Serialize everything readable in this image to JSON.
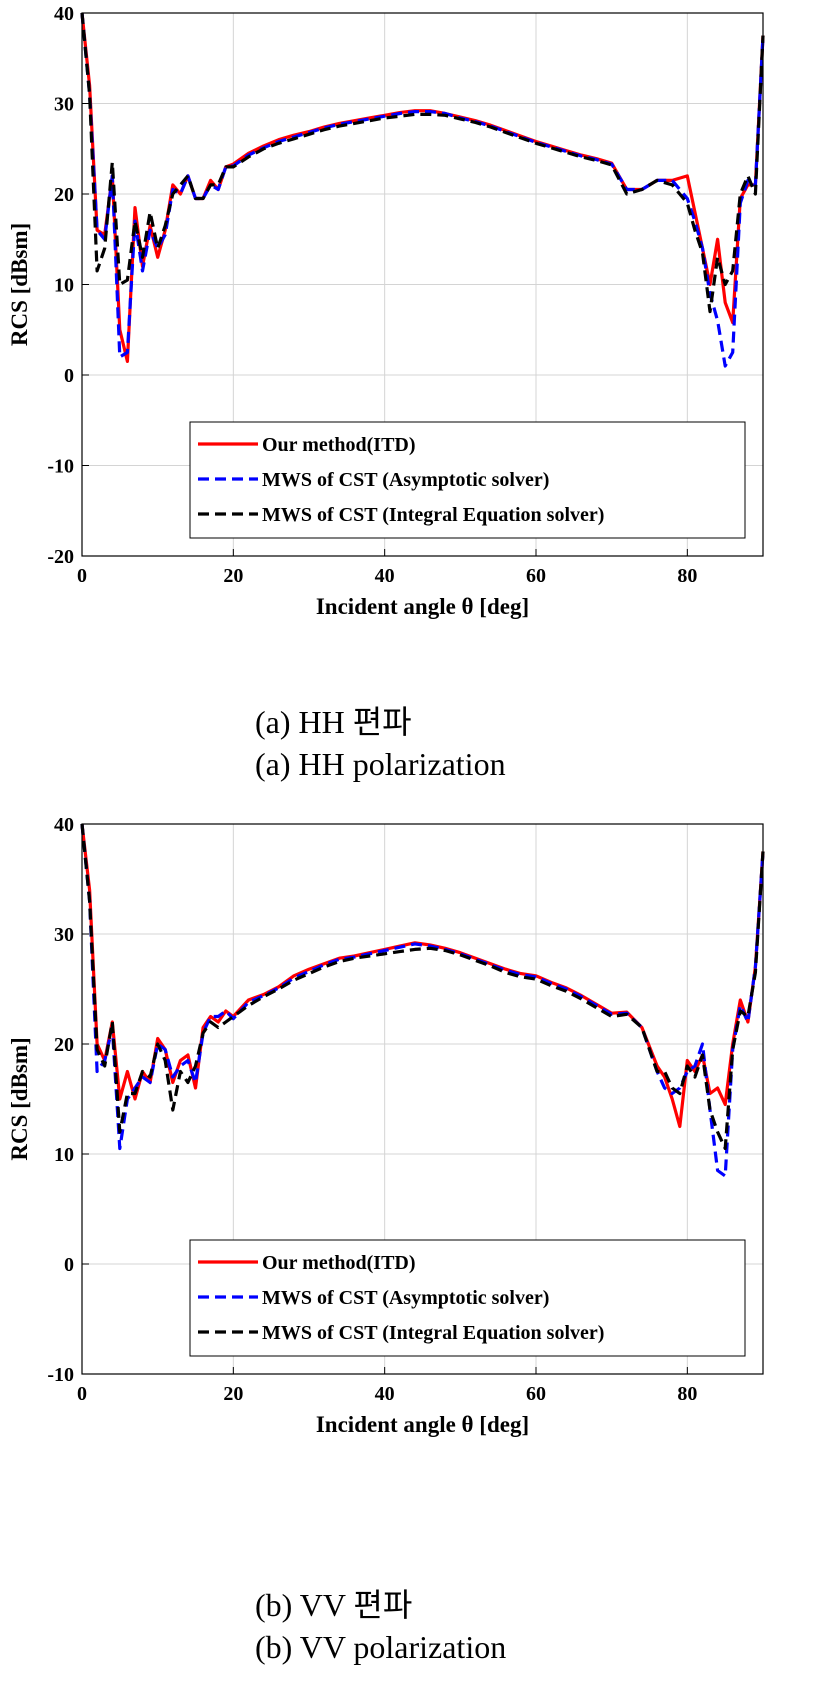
{
  "chart_data": [
    {
      "type": "line",
      "caption_kr": "(a) HH 편파",
      "caption_en": "(a) HH polarization",
      "xlabel": "Incident angle θ [deg]",
      "ylabel": "RCS [dBsm]",
      "xlim": [
        0,
        90
      ],
      "ylim": [
        -20,
        40
      ],
      "xticks": [
        0,
        20,
        40,
        60,
        80
      ],
      "yticks": [
        -20,
        -10,
        0,
        10,
        20,
        30,
        40
      ],
      "grid": true,
      "legend_position": "bottom-right",
      "series": [
        {
          "name": "Our method(ITD)",
          "color": "#ff0000",
          "dash": "solid",
          "x": [
            0,
            1,
            2,
            3,
            4,
            5,
            6,
            7,
            8,
            9,
            10,
            11,
            12,
            13,
            14,
            15,
            16,
            17,
            18,
            19,
            20,
            22,
            24,
            26,
            28,
            30,
            32,
            34,
            36,
            38,
            40,
            42,
            44,
            46,
            48,
            50,
            52,
            54,
            56,
            58,
            60,
            62,
            64,
            66,
            68,
            70,
            72,
            74,
            76,
            78,
            80,
            81,
            82,
            83,
            84,
            85,
            86,
            87,
            88,
            89,
            90
          ],
          "y": [
            40,
            32,
            16,
            15.5,
            22,
            5,
            1.5,
            18.5,
            12,
            16.5,
            13,
            16,
            21,
            20,
            22,
            19.5,
            19.5,
            21.5,
            20.5,
            23,
            23.3,
            24.5,
            25.3,
            26,
            26.5,
            26.9,
            27.4,
            27.8,
            28.1,
            28.4,
            28.7,
            29,
            29.2,
            29.2,
            28.9,
            28.5,
            28.1,
            27.6,
            27,
            26.4,
            25.8,
            25.3,
            24.8,
            24.3,
            23.9,
            23.4,
            20.5,
            20.5,
            21.5,
            21.5,
            22,
            18,
            14,
            10,
            15,
            8,
            5.8,
            19.5,
            21,
            21,
            37.5
          ]
        },
        {
          "name": "MWS of CST (Asymptotic solver)",
          "color": "#0000ff",
          "dash": "dashed",
          "x": [
            0,
            1,
            2,
            3,
            4,
            5,
            6,
            7,
            8,
            9,
            10,
            11,
            12,
            13,
            14,
            15,
            16,
            17,
            18,
            19,
            20,
            22,
            24,
            26,
            28,
            30,
            32,
            34,
            36,
            38,
            40,
            42,
            44,
            46,
            48,
            50,
            52,
            54,
            56,
            58,
            60,
            62,
            64,
            66,
            68,
            70,
            72,
            74,
            76,
            78,
            80,
            81,
            82,
            83,
            84,
            85,
            86,
            87,
            88,
            89,
            90
          ],
          "y": [
            40,
            31,
            16,
            15,
            22,
            2,
            2.5,
            17,
            11.5,
            16,
            14,
            15.5,
            20.5,
            20,
            22,
            19.5,
            19.5,
            21,
            20.5,
            23,
            23.1,
            24.3,
            25.1,
            25.8,
            26.3,
            26.8,
            27.3,
            27.7,
            28,
            28.3,
            28.6,
            28.9,
            29.1,
            29.1,
            28.9,
            28.4,
            28,
            27.5,
            26.9,
            26.3,
            25.7,
            25.2,
            24.7,
            24.2,
            23.8,
            23.3,
            20.5,
            20.5,
            21.5,
            21.5,
            19.5,
            17,
            14,
            9,
            6,
            1,
            2.5,
            19,
            21.5,
            21,
            37.5
          ]
        },
        {
          "name": "MWS of CST (Integral Equation solver)",
          "color": "#000000",
          "dash": "dashed",
          "x": [
            0,
            1,
            2,
            3,
            4,
            5,
            6,
            7,
            8,
            9,
            10,
            11,
            12,
            13,
            14,
            15,
            16,
            17,
            18,
            19,
            20,
            22,
            24,
            26,
            28,
            30,
            32,
            34,
            36,
            38,
            40,
            42,
            44,
            46,
            48,
            50,
            52,
            54,
            56,
            58,
            60,
            62,
            64,
            66,
            68,
            70,
            72,
            74,
            76,
            78,
            80,
            81,
            82,
            83,
            84,
            85,
            86,
            87,
            88,
            89,
            90
          ],
          "y": [
            40,
            31,
            11.5,
            14,
            23.5,
            10,
            10.5,
            17,
            13,
            18,
            14,
            16.5,
            20,
            21,
            22,
            19.5,
            19.5,
            21,
            21,
            23,
            23,
            24.1,
            25,
            25.6,
            26.1,
            26.6,
            27.1,
            27.5,
            27.8,
            28.1,
            28.4,
            28.6,
            28.8,
            28.8,
            28.7,
            28.3,
            27.9,
            27.4,
            26.8,
            26.2,
            25.6,
            25.1,
            24.6,
            24.1,
            23.7,
            23.2,
            20,
            20.5,
            21.5,
            21,
            19,
            16,
            13.5,
            7,
            13,
            10,
            11.5,
            20,
            22,
            20,
            37.5
          ]
        }
      ]
    },
    {
      "type": "line",
      "caption_kr": "(b) VV 편파",
      "caption_en": "(b) VV polarization",
      "xlabel": "Incident angle θ [deg]",
      "ylabel": "RCS [dBsm]",
      "xlim": [
        0,
        90
      ],
      "ylim": [
        -10,
        40
      ],
      "xticks": [
        0,
        20,
        40,
        60,
        80
      ],
      "yticks": [
        -10,
        0,
        10,
        20,
        30,
        40
      ],
      "grid": true,
      "legend_position": "bottom-right",
      "series": [
        {
          "name": "Our method(ITD)",
          "color": "#ff0000",
          "dash": "solid",
          "x": [
            0,
            1,
            2,
            3,
            4,
            5,
            6,
            7,
            8,
            9,
            10,
            11,
            12,
            13,
            14,
            15,
            16,
            17,
            18,
            19,
            20,
            22,
            24,
            26,
            28,
            30,
            32,
            34,
            36,
            38,
            40,
            42,
            44,
            46,
            48,
            50,
            52,
            54,
            56,
            58,
            60,
            62,
            64,
            66,
            68,
            70,
            72,
            74,
            76,
            77,
            78,
            79,
            80,
            81,
            82,
            83,
            84,
            85,
            86,
            87,
            88,
            89,
            90
          ],
          "y": [
            40,
            34,
            20,
            18.5,
            22,
            15,
            17.5,
            15,
            17.5,
            16.5,
            20.5,
            19.5,
            16.5,
            18.5,
            19,
            16,
            21.5,
            22.5,
            22,
            23,
            22.5,
            24,
            24.5,
            25.2,
            26.2,
            26.8,
            27.3,
            27.8,
            28,
            28.3,
            28.6,
            28.9,
            29.2,
            29,
            28.7,
            28.3,
            27.8,
            27.3,
            26.8,
            26.4,
            26.2,
            25.6,
            25.1,
            24.4,
            23.6,
            22.8,
            22.9,
            21.5,
            18,
            17,
            15,
            12.5,
            18.5,
            17.5,
            19,
            15.5,
            16,
            14.5,
            20,
            24,
            22,
            27,
            37.5
          ]
        },
        {
          "name": "MWS of CST (Asymptotic solver)",
          "color": "#0000ff",
          "dash": "dashed",
          "x": [
            0,
            1,
            2,
            3,
            4,
            5,
            6,
            7,
            8,
            9,
            10,
            11,
            12,
            13,
            14,
            15,
            16,
            17,
            18,
            19,
            20,
            22,
            24,
            26,
            28,
            30,
            32,
            34,
            36,
            38,
            40,
            42,
            44,
            46,
            48,
            50,
            52,
            54,
            56,
            58,
            60,
            62,
            64,
            66,
            68,
            70,
            72,
            74,
            76,
            77,
            78,
            79,
            80,
            81,
            82,
            83,
            84,
            85,
            86,
            87,
            88,
            89,
            90
          ],
          "y": [
            40,
            33,
            17.5,
            18.5,
            21.5,
            10.5,
            15,
            16,
            17,
            16.5,
            20,
            19.5,
            17,
            18,
            18.5,
            16.5,
            21,
            22.5,
            22.5,
            23,
            22.3,
            23.8,
            24.4,
            25.1,
            26,
            26.6,
            27.2,
            27.7,
            27.9,
            28.2,
            28.5,
            28.8,
            29.1,
            28.9,
            28.6,
            28.2,
            27.7,
            27.2,
            26.7,
            26.3,
            26.1,
            25.5,
            25,
            24.3,
            23.5,
            22.7,
            22.8,
            21.5,
            17.5,
            16,
            15.5,
            16,
            17.5,
            18,
            20,
            14,
            8.5,
            8,
            19.5,
            23.5,
            22,
            27,
            37.5
          ]
        },
        {
          "name": "MWS of CST (Integral Equation solver)",
          "color": "#000000",
          "dash": "dashed",
          "x": [
            0,
            1,
            2,
            3,
            4,
            5,
            6,
            7,
            8,
            9,
            10,
            11,
            12,
            13,
            14,
            15,
            16,
            17,
            18,
            19,
            20,
            22,
            24,
            26,
            28,
            30,
            32,
            34,
            36,
            38,
            40,
            42,
            44,
            46,
            48,
            50,
            52,
            54,
            56,
            58,
            60,
            62,
            64,
            66,
            68,
            70,
            72,
            74,
            76,
            77,
            78,
            79,
            80,
            81,
            82,
            83,
            84,
            85,
            86,
            87,
            88,
            89,
            90
          ],
          "y": [
            40,
            33,
            19.5,
            18,
            22,
            12,
            15.5,
            15.5,
            17.5,
            17,
            20,
            18.5,
            14,
            17.5,
            16.5,
            18,
            21,
            22,
            21.5,
            22,
            22.5,
            23.5,
            24.3,
            25,
            25.8,
            26.4,
            27,
            27.5,
            27.8,
            28,
            28.2,
            28.4,
            28.6,
            28.7,
            28.5,
            28.1,
            27.6,
            27.1,
            26.5,
            26.1,
            25.9,
            25.3,
            24.8,
            24.1,
            23.3,
            22.5,
            22.7,
            21.5,
            17.5,
            17.5,
            16,
            15.5,
            18,
            17,
            19,
            14,
            12,
            10.5,
            19.5,
            23,
            22.5,
            26.5,
            37.5
          ]
        }
      ]
    }
  ]
}
